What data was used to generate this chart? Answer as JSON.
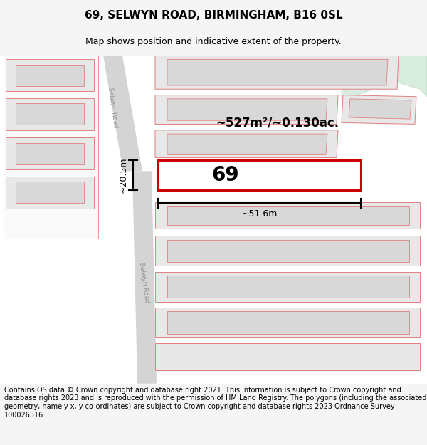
{
  "title": "69, SELWYN ROAD, BIRMINGHAM, B16 0SL",
  "subtitle": "Map shows position and indicative extent of the property.",
  "footer": "Contains OS data © Crown copyright and database right 2021. This information is subject to Crown copyright and database rights 2023 and is reproduced with the permission of HM Land Registry. The polygons (including the associated geometry, namely x, y co-ordinates) are subject to Crown copyright and database rights 2023 Ordnance Survey 100026316.",
  "area_text": "~527m²/~0.130ac.",
  "width_text": "~51.6m",
  "height_text": "~20.5m",
  "number_text": "69",
  "bg_color": "#f5f5f5",
  "map_bg": "#ffffff",
  "road_color": "#d4d4d4",
  "building_fill": "#e8e8e8",
  "building_fill2": "#d8d8d8",
  "pink_line": "#e08080",
  "red_outline": "#cc0000",
  "green_area": "#d8ede0",
  "green_edge": "#c0d8c0",
  "title_fontsize": 11,
  "subtitle_fontsize": 9,
  "footer_fontsize": 7,
  "road_label_color": "#909090"
}
